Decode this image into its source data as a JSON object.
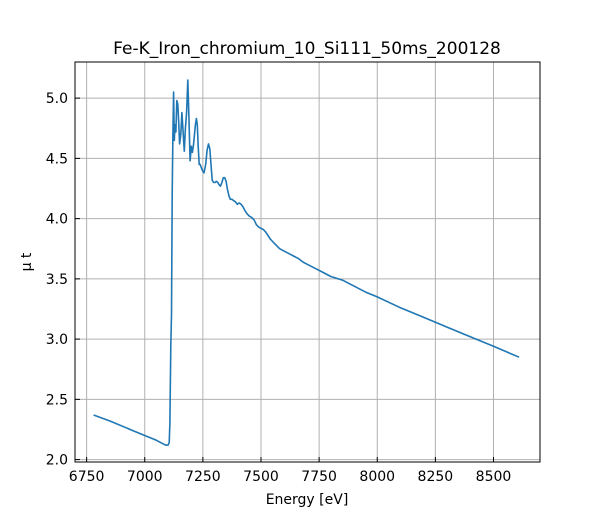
{
  "chart_data": {
    "type": "line",
    "title": "Fe-K_Iron_chromium_10_Si111_50ms_200128",
    "xlabel": "Energy [eV]",
    "ylabel": "μ t",
    "xlim": [
      6700,
      8700
    ],
    "ylim": [
      1.98,
      5.3
    ],
    "xticks": [
      6750,
      7000,
      7250,
      7500,
      7750,
      8000,
      8250,
      8500
    ],
    "yticks": [
      2.0,
      2.5,
      3.0,
      3.5,
      4.0,
      4.5,
      5.0
    ],
    "grid": true,
    "line_color": "#1f77b4",
    "series": [
      {
        "x": [
          6780,
          6850,
          6950,
          7050,
          7080,
          7090,
          7100,
          7105,
          7108,
          7112,
          7115,
          7118,
          7121,
          7124,
          7127,
          7130,
          7134,
          7138,
          7142,
          7146,
          7150,
          7155,
          7160,
          7165,
          7170,
          7175,
          7180,
          7185,
          7190,
          7195,
          7200,
          7205,
          7210,
          7214,
          7218,
          7222,
          7226,
          7230,
          7234,
          7238,
          7242,
          7248,
          7255,
          7262,
          7268,
          7274,
          7280,
          7285,
          7290,
          7296,
          7302,
          7308,
          7314,
          7320,
          7326,
          7332,
          7338,
          7344,
          7350,
          7356,
          7362,
          7368,
          7375,
          7382,
          7390,
          7398,
          7406,
          7414,
          7422,
          7430,
          7440,
          7450,
          7460,
          7470,
          7480,
          7490,
          7500,
          7510,
          7520,
          7530,
          7540,
          7550,
          7560,
          7570,
          7580,
          7600,
          7620,
          7640,
          7660,
          7680,
          7700,
          7720,
          7740,
          7760,
          7780,
          7800,
          7850,
          7900,
          7950,
          8000,
          8100,
          8200,
          8300,
          8400,
          8500,
          8610
        ],
        "y": [
          2.37,
          2.32,
          2.24,
          2.16,
          2.13,
          2.12,
          2.12,
          2.14,
          2.3,
          2.95,
          3.2,
          4.2,
          4.7,
          5.05,
          4.65,
          4.78,
          4.72,
          4.98,
          4.95,
          4.8,
          4.62,
          4.7,
          4.88,
          4.72,
          4.56,
          4.75,
          4.88,
          5.15,
          4.85,
          4.48,
          4.6,
          4.55,
          4.62,
          4.7,
          4.78,
          4.83,
          4.78,
          4.6,
          4.45,
          4.45,
          4.43,
          4.4,
          4.38,
          4.45,
          4.57,
          4.62,
          4.58,
          4.45,
          4.32,
          4.3,
          4.3,
          4.31,
          4.3,
          4.28,
          4.27,
          4.3,
          4.34,
          4.34,
          4.31,
          4.24,
          4.19,
          4.16,
          4.16,
          4.15,
          4.14,
          4.12,
          4.13,
          4.12,
          4.1,
          4.07,
          4.04,
          4.02,
          4.01,
          3.99,
          3.95,
          3.93,
          3.92,
          3.91,
          3.89,
          3.86,
          3.83,
          3.81,
          3.79,
          3.77,
          3.75,
          3.73,
          3.71,
          3.69,
          3.67,
          3.64,
          3.62,
          3.6,
          3.58,
          3.56,
          3.54,
          3.52,
          3.49,
          3.44,
          3.39,
          3.35,
          3.26,
          3.18,
          3.1,
          3.02,
          2.94,
          2.85
        ]
      }
    ]
  }
}
